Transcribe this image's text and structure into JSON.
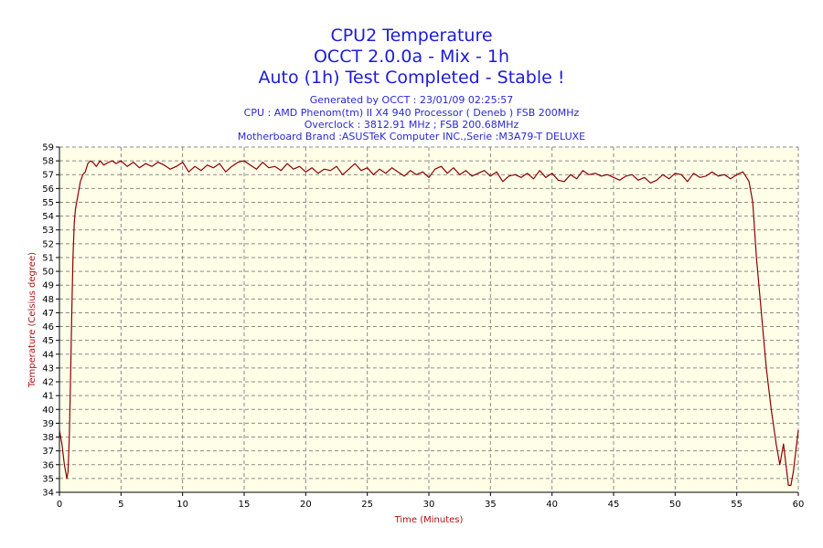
{
  "chart_data": {
    "type": "line",
    "title_lines": [
      "CPU2 Temperature",
      "OCCT 2.0.0a - Mix - 1h",
      "Auto (1h) Test Completed - Stable !"
    ],
    "subtitle_lines": [
      "Generated by OCCT : 23/01/09 02:25:57",
      "CPU : AMD Phenom(tm) II X4 940 Processor ( Deneb ) FSB 200MHz",
      "Overclock : 3812.91 MHz ; FSB 200.68MHz",
      "Motherboard Brand :ASUSTeK Computer INC.,Serie :M3A79-T DELUXE"
    ],
    "xlabel": "Time (Minutes)",
    "ylabel": "Temperature (Celsius degree)",
    "xlim": [
      0,
      60
    ],
    "ylim": [
      34,
      59
    ],
    "xticks": [
      0,
      5,
      10,
      15,
      20,
      25,
      30,
      35,
      40,
      45,
      50,
      55,
      60
    ],
    "yticks": [
      34,
      35,
      36,
      37,
      38,
      39,
      40,
      41,
      42,
      43,
      44,
      45,
      46,
      47,
      48,
      49,
      50,
      51,
      52,
      53,
      54,
      55,
      56,
      57,
      58,
      59
    ],
    "grid": true,
    "background_color": "#ffffe8",
    "line_color": "#8b0000",
    "series": [
      {
        "x": [
          0,
          0.2,
          0.4,
          0.6,
          0.7,
          0.8,
          0.9,
          1.0,
          1.1,
          1.2,
          1.3,
          1.5,
          1.7,
          1.9,
          2.1,
          2.3,
          2.5,
          2.7,
          3.0,
          3.3,
          3.6,
          4.0,
          4.3,
          4.6,
          5.0,
          5.5,
          6.0,
          6.5,
          7.0,
          7.5,
          8.0,
          8.5,
          9.0,
          9.5,
          10.0,
          10.5,
          11.0,
          11.5,
          12.0,
          12.5,
          13.0,
          13.5,
          14.0,
          14.5,
          15.0,
          15.5,
          16.0,
          16.5,
          17.0,
          17.5,
          18.0,
          18.5,
          19.0,
          19.5,
          20.0,
          20.5,
          21.0,
          21.5,
          22.0,
          22.5,
          23.0,
          23.5,
          24.0,
          24.5,
          25.0,
          25.5,
          26.0,
          26.5,
          27.0,
          27.5,
          28.0,
          28.5,
          29.0,
          29.5,
          30.0,
          30.5,
          31.0,
          31.5,
          32.0,
          32.5,
          33.0,
          33.5,
          34.0,
          34.5,
          35.0,
          35.5,
          36.0,
          36.5,
          37.0,
          37.5,
          38.0,
          38.5,
          39.0,
          39.5,
          40.0,
          40.5,
          41.0,
          41.5,
          42.0,
          42.5,
          43.0,
          43.5,
          44.0,
          44.5,
          45.0,
          45.5,
          46.0,
          46.5,
          47.0,
          47.5,
          48.0,
          48.5,
          49.0,
          49.5,
          50.0,
          50.5,
          51.0,
          51.5,
          52.0,
          52.5,
          53.0,
          53.5,
          54.0,
          54.5,
          55.0,
          55.5,
          55.8,
          56.0,
          56.3,
          56.6,
          57.0,
          57.4,
          57.8,
          58.2,
          58.5,
          58.8,
          59.0,
          59.2,
          59.4,
          59.6,
          59.8,
          60.0
        ],
        "y": [
          38.5,
          37.5,
          36.0,
          35.0,
          35.5,
          38.0,
          42.0,
          47.0,
          51.0,
          53.5,
          54.5,
          55.5,
          56.5,
          57.0,
          57.2,
          57.8,
          58.0,
          57.9,
          57.6,
          58.0,
          57.7,
          57.9,
          58.0,
          57.8,
          58.0,
          57.6,
          57.9,
          57.5,
          57.8,
          57.6,
          57.9,
          57.7,
          57.4,
          57.6,
          57.9,
          57.2,
          57.6,
          57.3,
          57.7,
          57.5,
          57.8,
          57.2,
          57.6,
          57.9,
          58.0,
          57.7,
          57.4,
          57.9,
          57.5,
          57.6,
          57.3,
          57.8,
          57.4,
          57.6,
          57.2,
          57.5,
          57.1,
          57.4,
          57.3,
          57.6,
          57.0,
          57.4,
          57.8,
          57.3,
          57.5,
          57.0,
          57.4,
          57.1,
          57.5,
          57.2,
          56.9,
          57.3,
          57.0,
          57.2,
          56.8,
          57.4,
          57.6,
          57.1,
          57.5,
          57.0,
          57.3,
          56.9,
          57.1,
          57.3,
          56.9,
          57.2,
          56.5,
          56.9,
          57.0,
          56.8,
          57.1,
          56.7,
          57.3,
          56.8,
          57.1,
          56.6,
          56.5,
          57.0,
          56.7,
          57.3,
          57.0,
          57.1,
          56.9,
          57.0,
          56.8,
          56.6,
          56.9,
          57.0,
          56.6,
          56.8,
          56.4,
          56.6,
          57.0,
          56.7,
          57.1,
          57.0,
          56.5,
          57.1,
          56.8,
          56.9,
          57.2,
          56.9,
          57.0,
          56.7,
          57.0,
          57.2,
          56.8,
          56.5,
          55.0,
          51.0,
          47.0,
          43.0,
          40.0,
          37.5,
          36.0,
          37.5,
          36.0,
          34.5,
          34.5,
          35.5,
          37.0,
          38.5
        ]
      }
    ]
  }
}
